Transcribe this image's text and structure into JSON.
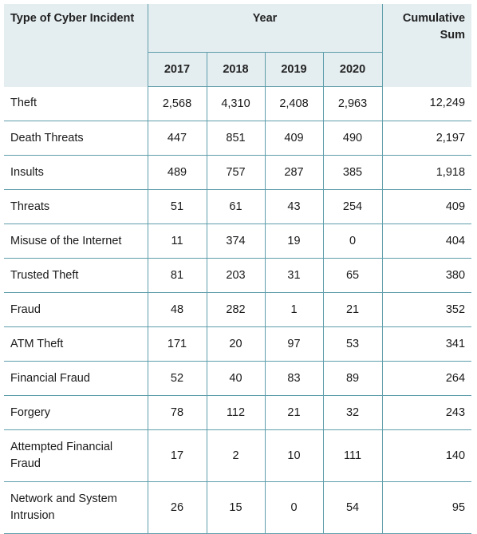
{
  "table": {
    "header": {
      "type": "Type of Cyber Incident",
      "year": "Year",
      "cumulative": "Cumulative Sum",
      "years": [
        "2017",
        "2018",
        "2019",
        "2020"
      ]
    },
    "rows": [
      [
        "Theft",
        "2,568",
        "4,310",
        "2,408",
        "2,963",
        "12,249"
      ],
      [
        "Death Threats",
        "447",
        "851",
        "409",
        "490",
        "2,197"
      ],
      [
        "Insults",
        "489",
        "757",
        "287",
        "385",
        "1,918"
      ],
      [
        "Threats",
        "51",
        "61",
        "43",
        "254",
        "409"
      ],
      [
        "Misuse of the Internet",
        "11",
        "374",
        "19",
        "0",
        "404"
      ],
      [
        "Trusted Theft",
        "81",
        "203",
        "31",
        "65",
        "380"
      ],
      [
        "Fraud",
        "48",
        "282",
        "1",
        "21",
        "352"
      ],
      [
        "ATM Theft",
        "171",
        "20",
        "97",
        "53",
        "341"
      ],
      [
        "Financial Fraud",
        "52",
        "40",
        "83",
        "89",
        "264"
      ],
      [
        "Forgery",
        "78",
        "112",
        "21",
        "32",
        "243"
      ],
      [
        "Attempted Financial Fraud",
        "17",
        "2",
        "10",
        "111",
        "140"
      ],
      [
        "Network and System Intrusion",
        "26",
        "15",
        "0",
        "54",
        "95"
      ]
    ]
  }
}
